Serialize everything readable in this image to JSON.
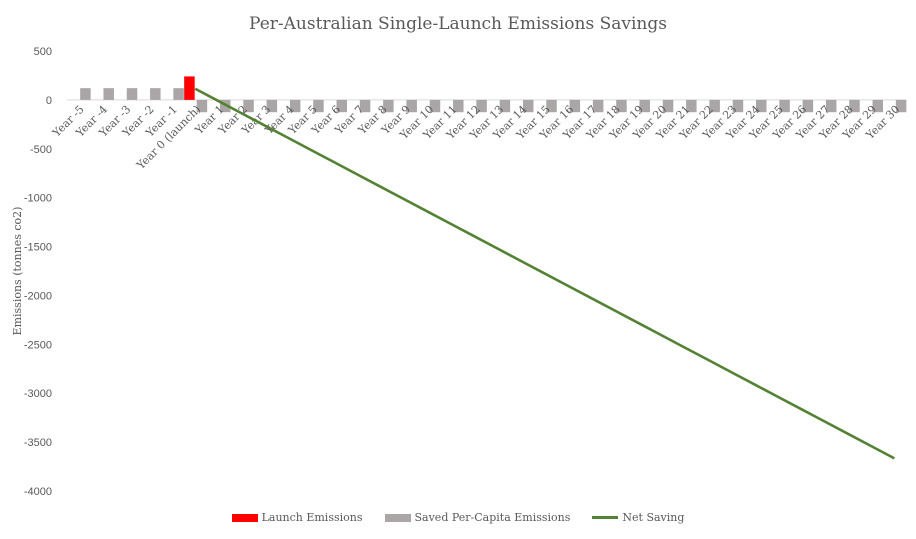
{
  "chart_data": {
    "type": "bar+line",
    "title": "Per-Australian Single-Launch Emissions Savings",
    "xlabel": "",
    "ylabel": "Emissions (tonnes co2)",
    "ylim": [
      -4000,
      500
    ],
    "yticks": [
      500,
      0,
      -500,
      -1000,
      -1500,
      -2000,
      -2500,
      -3000,
      -3500,
      -4000
    ],
    "grid": false,
    "legend_position": "bottom",
    "categories": [
      "Year -5",
      "Year -4",
      "Year -3",
      "Year -2",
      "Year -1",
      "Year 0 (launch)",
      "Year 1",
      "Year 2",
      "Year 3",
      "Year 4",
      "Year 5",
      "Year 6",
      "Year 7",
      "Year 8",
      "Year 9",
      "Year 10",
      "Year 11",
      "Year 12",
      "Year 13",
      "Year 14",
      "Year 15",
      "Year 16",
      "Year 17",
      "Year 18",
      "Year 19",
      "Year 20",
      "Year 21",
      "Year 22",
      "Year 23",
      "Year 24",
      "Year 25",
      "Year 26",
      "Year 27",
      "Year 28",
      "Year 29",
      "Year 30"
    ],
    "series": [
      {
        "name": "Launch Emissions",
        "kind": "bar",
        "color": "#ff0000",
        "values": [
          0,
          0,
          0,
          0,
          0,
          240,
          0,
          0,
          0,
          0,
          0,
          0,
          0,
          0,
          0,
          0,
          0,
          0,
          0,
          0,
          0,
          0,
          0,
          0,
          0,
          0,
          0,
          0,
          0,
          0,
          0,
          0,
          0,
          0,
          0,
          0
        ]
      },
      {
        "name": "Saved Per-Capita Emissions",
        "kind": "bar",
        "color": "#aaa6a6",
        "values": [
          120,
          120,
          120,
          120,
          120,
          -126,
          -126,
          -126,
          -126,
          -126,
          -126,
          -126,
          -126,
          -126,
          -126,
          -126,
          -126,
          -126,
          -126,
          -126,
          -126,
          -126,
          -126,
          -126,
          -126,
          -126,
          -126,
          -126,
          -126,
          -126,
          -126,
          -126,
          -126,
          -126,
          -126,
          -126
        ]
      },
      {
        "name": "Net Saving",
        "kind": "line",
        "color": "#548235",
        "values": [
          null,
          null,
          null,
          null,
          null,
          114,
          -12,
          -138,
          -264,
          -390,
          -516,
          -642,
          -768,
          -894,
          -1020,
          -1146,
          -1272,
          -1398,
          -1524,
          -1650,
          -1776,
          -1902,
          -2028,
          -2154,
          -2280,
          -2406,
          -2532,
          -2658,
          -2784,
          -2910,
          -3036,
          -3162,
          -3288,
          -3414,
          -3540,
          -3666
        ]
      }
    ]
  }
}
